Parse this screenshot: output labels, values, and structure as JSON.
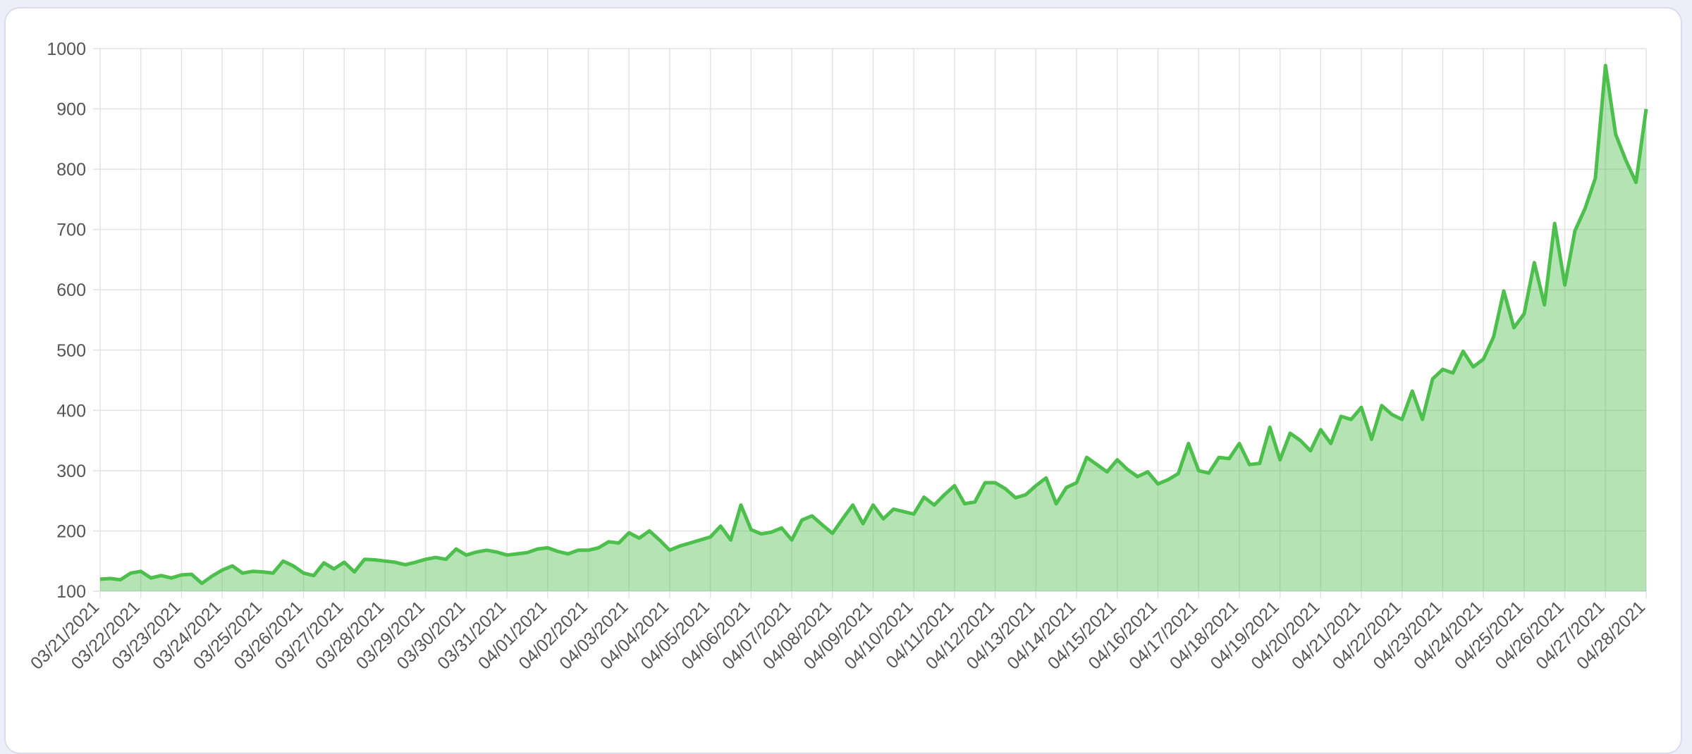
{
  "chart_data": {
    "type": "line",
    "categories": [
      "03/21/2021",
      null,
      null,
      null,
      "03/22/2021",
      null,
      null,
      null,
      "03/23/2021",
      null,
      null,
      null,
      "03/24/2021",
      null,
      null,
      null,
      "03/25/2021",
      null,
      null,
      null,
      "03/26/2021",
      null,
      null,
      null,
      "03/27/2021",
      null,
      null,
      null,
      "03/28/2021",
      null,
      null,
      null,
      "03/29/2021",
      null,
      null,
      null,
      "03/30/2021",
      null,
      null,
      null,
      "03/31/2021",
      null,
      null,
      null,
      "04/01/2021",
      null,
      null,
      null,
      "04/02/2021",
      null,
      null,
      null,
      "04/03/2021",
      null,
      null,
      null,
      "04/04/2021",
      null,
      null,
      null,
      "04/05/2021",
      null,
      null,
      null,
      "04/06/2021",
      null,
      null,
      null,
      "04/07/2021",
      null,
      null,
      null,
      "04/08/2021",
      null,
      null,
      null,
      "04/09/2021",
      null,
      null,
      null,
      "04/10/2021",
      null,
      null,
      null,
      "04/11/2021",
      null,
      null,
      null,
      "04/12/2021",
      null,
      null,
      null,
      "04/13/2021",
      null,
      null,
      null,
      "04/14/2021",
      null,
      null,
      null,
      "04/15/2021",
      null,
      null,
      null,
      "04/16/2021",
      null,
      null,
      null,
      "04/17/2021",
      null,
      null,
      null,
      "04/18/2021",
      null,
      null,
      null,
      "04/19/2021",
      null,
      null,
      null,
      "04/20/2021",
      null,
      null,
      null,
      "04/21/2021",
      null,
      null,
      null,
      "04/22/2021",
      null,
      null,
      null,
      "04/23/2021",
      null,
      null,
      null,
      "04/24/2021",
      null,
      null,
      null,
      "04/25/2021",
      null,
      null,
      null,
      "04/26/2021",
      null,
      null,
      null,
      "04/27/2021",
      null,
      null,
      null,
      "04/28/2021"
    ],
    "series": [
      {
        "color": "#4cbf4c",
        "values": [
          120,
          121,
          119,
          130,
          133,
          122,
          126,
          122,
          127,
          128,
          113,
          125,
          135,
          142,
          130,
          133,
          132,
          130,
          150,
          142,
          130,
          126,
          147,
          137,
          148,
          132,
          153,
          152,
          150,
          148,
          144,
          148,
          153,
          156,
          153,
          170,
          160,
          165,
          168,
          165,
          160,
          162,
          164,
          170,
          172,
          166,
          162,
          168,
          168,
          172,
          182,
          180,
          197,
          188,
          200,
          185,
          168,
          175,
          180,
          185,
          190,
          208,
          185,
          243,
          202,
          195,
          198,
          205,
          185,
          218,
          225,
          210,
          196,
          220,
          243,
          212,
          243,
          220,
          236,
          232,
          228,
          256,
          243,
          260,
          275,
          245,
          248,
          280,
          280,
          270,
          255,
          260,
          275,
          288,
          245,
          272,
          280,
          322,
          310,
          298,
          318,
          302,
          290,
          298,
          278,
          285,
          295,
          345,
          300,
          296,
          322,
          320,
          345,
          310,
          312,
          372,
          318,
          362,
          350,
          333,
          368,
          345,
          390,
          385,
          405,
          352,
          408,
          393,
          385,
          432,
          385,
          452,
          468,
          462,
          498,
          472,
          485,
          522,
          598,
          537,
          560,
          645,
          575,
          710,
          608,
          698,
          735,
          785,
          972,
          858,
          815,
          778,
          900
        ]
      }
    ],
    "ylim": [
      100,
      1000
    ],
    "yticks": [
      100,
      200,
      300,
      400,
      500,
      600,
      700,
      800,
      900,
      1000
    ],
    "grid": true
  }
}
